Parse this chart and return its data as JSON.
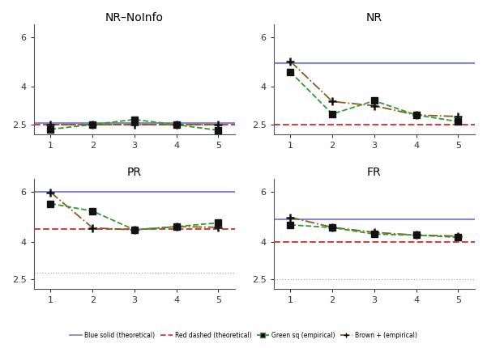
{
  "panels": [
    {
      "title": "NR–NoInfo",
      "row": 0,
      "col": 0,
      "ylim": [
        2.1,
        6.5
      ],
      "yticks": [
        2.5,
        4.0,
        6.0
      ],
      "ytick_labels": [
        "2.5",
        "4",
        "6"
      ],
      "blue_hline": 2.546,
      "red_hline": 2.5,
      "gray_dotted_hline": null,
      "green_sq": [
        2.31,
        2.5,
        2.7,
        2.49,
        2.27
      ],
      "brown_plus": [
        2.5,
        2.5,
        2.5,
        2.5,
        2.5
      ]
    },
    {
      "title": "NR",
      "row": 0,
      "col": 1,
      "ylim": [
        2.1,
        6.5
      ],
      "yticks": [
        2.5,
        4.0,
        6.0
      ],
      "ytick_labels": [
        "2.5",
        "4",
        "6"
      ],
      "blue_hline": 4.95,
      "red_hline": 2.5,
      "gray_dotted_hline": null,
      "green_sq": [
        4.6,
        2.92,
        3.45,
        2.88,
        2.62
      ],
      "brown_plus": [
        5.02,
        3.42,
        3.25,
        2.88,
        2.82
      ]
    },
    {
      "title": "PR",
      "row": 1,
      "col": 0,
      "ylim": [
        2.1,
        6.5
      ],
      "yticks": [
        2.5,
        4.0,
        6.0
      ],
      "ytick_labels": [
        "2.5",
        "4",
        "6"
      ],
      "blue_hline": 6.0,
      "red_hline": 4.5,
      "gray_dotted_hline": 2.75,
      "green_sq": [
        5.52,
        5.22,
        4.47,
        4.6,
        4.75
      ],
      "brown_plus": [
        5.97,
        4.55,
        4.47,
        4.6,
        4.57
      ]
    },
    {
      "title": "FR",
      "row": 1,
      "col": 1,
      "ylim": [
        2.1,
        6.5
      ],
      "yticks": [
        2.5,
        4.0,
        6.0
      ],
      "ytick_labels": [
        "2.5",
        "4",
        "6"
      ],
      "blue_hline": 4.9,
      "red_hline": 4.0,
      "gray_dotted_hline": 2.5,
      "green_sq": [
        4.67,
        4.56,
        4.3,
        4.26,
        4.17
      ],
      "brown_plus": [
        4.97,
        4.57,
        4.37,
        4.26,
        4.22
      ]
    }
  ],
  "x": [
    1,
    2,
    3,
    4,
    5
  ],
  "green_color": "#339933",
  "brown_color": "#806020",
  "blue_color": "#8888cc",
  "red_color": "#cc4444",
  "gray_color": "#aaaaaa",
  "bg_color": "#ffffff"
}
